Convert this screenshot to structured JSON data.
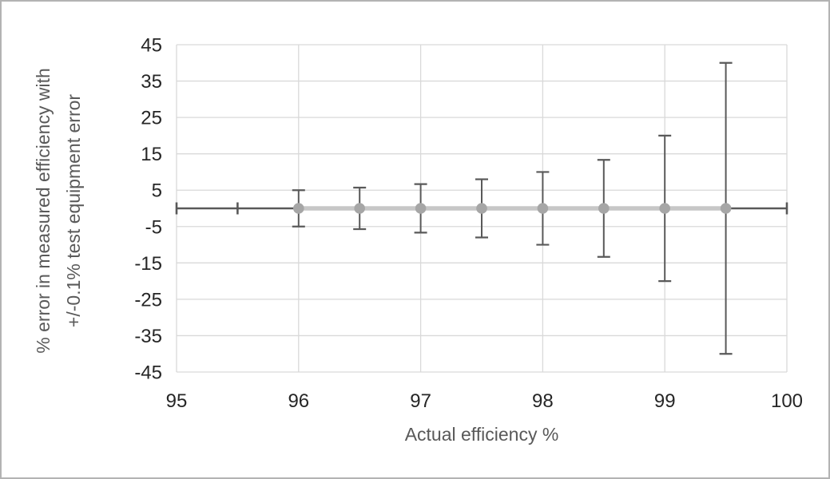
{
  "chart_data": {
    "type": "scatter",
    "title": "",
    "xlabel": "Actual efficiency %",
    "ylabel_line1": "% error in measured efficiency with",
    "ylabel_line2": "+/-0.1% test equipment error",
    "xlim": [
      95,
      100
    ],
    "ylim": [
      -45,
      45
    ],
    "x_ticks": [
      95,
      96,
      97,
      98,
      99,
      100
    ],
    "y_ticks": [
      45,
      35,
      25,
      15,
      5,
      -5,
      -15,
      -25,
      -35,
      -45
    ],
    "grid": true,
    "legend_position": "none",
    "series": [
      {
        "name": "reference-zero-line",
        "type": "line",
        "color": "#595959",
        "x": [
          95,
          95.5,
          100
        ],
        "y": [
          0,
          0,
          0
        ],
        "marker": "small-vertical-tick",
        "line_span_x": [
          95,
          100
        ]
      },
      {
        "name": "measured-efficiency-error",
        "type": "line-with-error-bars",
        "line_color": "#c7c7c7",
        "marker_color": "#a6a6a6",
        "marker": "circle",
        "error_bar_color": "#595959",
        "x": [
          96,
          96.5,
          97,
          97.5,
          98,
          98.5,
          99,
          99.5
        ],
        "y": [
          0,
          0,
          0,
          0,
          0,
          0,
          0,
          0
        ],
        "y_error": [
          5,
          5.71,
          6.67,
          8,
          10,
          13.33,
          20,
          40
        ]
      }
    ]
  },
  "colors": {
    "background": "#ffffff",
    "frame_border": "#b3b3b3",
    "gridline": "#d9d9d9",
    "tick_label": "#262626",
    "axis_title": "#595959"
  }
}
